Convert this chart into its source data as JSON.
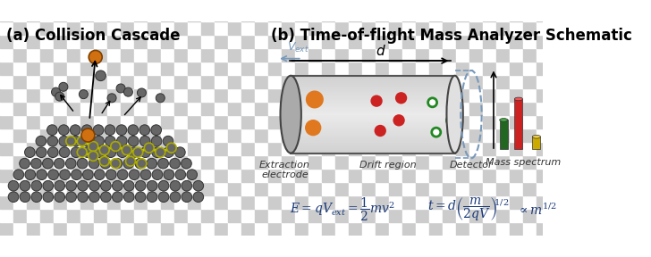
{
  "title_a": "(a) Collision Cascade",
  "title_b": "(b) Time-of-flight Mass Analyzer Schematic",
  "title_fontsize": 12,
  "bg_checker_color1": "#cccccc",
  "bg_checker_color2": "#ffffff",
  "checker_size": 18,
  "label_drift": "Drift region",
  "label_detector": "Detector",
  "label_mass": "Mass spectrum",
  "label_extraction": "Extraction\nelectrode",
  "label_vext": "$V_{ext}$",
  "label_d": "d",
  "tube_color": "#d8d8d8",
  "tube_edge": "#333333",
  "tube_gradient_left": "#c0c0c0",
  "tube_gradient_right": "#e8e8e8",
  "dot_orange": "#e07820",
  "dot_red": "#cc2222",
  "dot_green_fill": "#228822",
  "dot_green_outline": "#228822",
  "atom_color": "#666666",
  "atom_edge": "#333333",
  "cascade_orange": "#d07010",
  "yellow_chain": "#cccc00",
  "bar_green": "#226622",
  "bar_red": "#cc2222",
  "bar_yellow": "#ccaa00",
  "eq_color": "#1a3a7a",
  "text_italic_color": "#333333",
  "vext_color": "#7799bb",
  "detector_dash_color": "#7799bb"
}
